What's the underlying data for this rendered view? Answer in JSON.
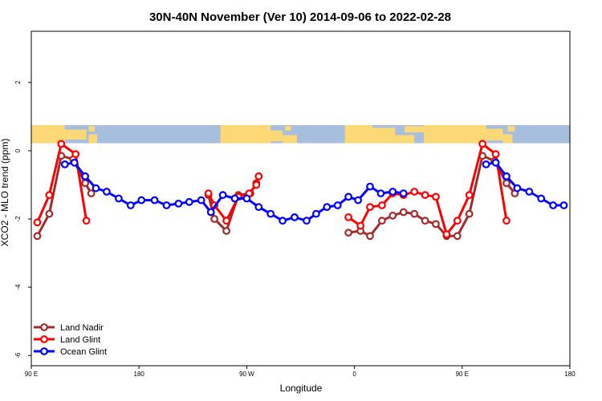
{
  "chart_data": {
    "type": "line",
    "title": "30N-40N November (Ver 10)   2014-09-06 to 2022-02-28",
    "xlabel": "Longitude",
    "ylabel": "XCO2 - MLO trend (ppm)",
    "xlim": [
      90,
      540
    ],
    "ylim": [
      -6.3,
      3.5
    ],
    "x_ticks": [
      {
        "value": 90,
        "label": "90 E"
      },
      {
        "value": 180,
        "label": "180"
      },
      {
        "value": 270,
        "label": "90 W"
      },
      {
        "value": 360,
        "label": "0"
      },
      {
        "value": 450,
        "label": "90 E"
      },
      {
        "value": 540,
        "label": "180"
      }
    ],
    "y_ticks": [
      {
        "value": 2,
        "label": "2"
      },
      {
        "value": 0,
        "label": "0"
      },
      {
        "value": -2,
        "label": "-2"
      },
      {
        "value": -4,
        "label": "-4"
      },
      {
        "value": -6,
        "label": "-6"
      }
    ],
    "map_strip": {
      "y_top": 0.75,
      "y_bottom": 0.22,
      "ocean_color": "#a8bede",
      "land_color": "#fdd876"
    },
    "legend_position": "bottom-left",
    "series": [
      {
        "name": "Land Nadir",
        "color": "#a52a2a",
        "segments": [
          [
            [
              95,
              -2.5
            ],
            [
              105,
              -1.85
            ],
            [
              115,
              -0.15
            ],
            [
              125,
              -0.25
            ],
            [
              135,
              -0.95
            ],
            [
              140,
              -1.25
            ]
          ],
          [
            [
              238,
              -1.3
            ],
            [
              243,
              -2.0
            ],
            [
              253,
              -2.35
            ],
            [
              263,
              -1.3
            ],
            [
              273,
              -1.25
            ],
            [
              278,
              -0.95
            ],
            [
              280,
              -0.75
            ]
          ],
          [
            [
              355,
              -2.4
            ],
            [
              365,
              -2.35
            ],
            [
              373,
              -2.5
            ],
            [
              383,
              -2.05
            ],
            [
              392,
              -1.9
            ],
            [
              401,
              -1.8
            ],
            [
              410,
              -1.85
            ],
            [
              419,
              -2.05
            ],
            [
              428,
              -2.15
            ],
            [
              437,
              -2.5
            ],
            [
              446,
              -2.5
            ],
            [
              456,
              -1.85
            ],
            [
              467,
              -0.15
            ],
            [
              477,
              -0.3
            ],
            [
              487,
              -0.95
            ],
            [
              494,
              -1.25
            ]
          ]
        ]
      },
      {
        "name": "Land Glint",
        "color": "#ff0000",
        "segments": [
          [
            [
              95,
              -2.1
            ],
            [
              105,
              -1.3
            ],
            [
              115,
              0.2
            ],
            [
              127,
              -0.1
            ],
            [
              136,
              -2.05
            ]
          ],
          [
            [
              238,
              -1.25
            ],
            [
              243,
              -1.6
            ],
            [
              253,
              -2.05
            ],
            [
              263,
              -1.35
            ],
            [
              272,
              -1.25
            ],
            [
              278,
              -1.0
            ],
            [
              280,
              -0.75
            ]
          ],
          [
            [
              355,
              -1.95
            ],
            [
              365,
              -2.2
            ],
            [
              373,
              -1.65
            ],
            [
              383,
              -1.6
            ],
            [
              392,
              -1.25
            ],
            [
              401,
              -1.3
            ],
            [
              410,
              -1.2
            ],
            [
              419,
              -1.3
            ],
            [
              428,
              -1.35
            ],
            [
              437,
              -2.45
            ],
            [
              446,
              -2.05
            ],
            [
              456,
              -1.3
            ],
            [
              467,
              0.2
            ],
            [
              478,
              -0.1
            ],
            [
              487,
              -2.05
            ]
          ]
        ]
      },
      {
        "name": "Ocean Glint",
        "color": "#0000ff",
        "segments": [
          [
            [
              118,
              -0.4
            ],
            [
              126,
              -0.35
            ],
            [
              135,
              -0.75
            ],
            [
              144,
              -1.1
            ],
            [
              153,
              -1.2
            ],
            [
              163,
              -1.4
            ],
            [
              173,
              -1.6
            ],
            [
              182,
              -1.45
            ],
            [
              193,
              -1.45
            ],
            [
              203,
              -1.6
            ],
            [
              213,
              -1.55
            ],
            [
              222,
              -1.5
            ],
            [
              232,
              -1.45
            ],
            [
              240,
              -1.8
            ],
            [
              250,
              -1.3
            ],
            [
              260,
              -1.4
            ],
            [
              270,
              -1.4
            ],
            [
              280,
              -1.65
            ],
            [
              290,
              -1.85
            ],
            [
              300,
              -2.05
            ],
            [
              310,
              -1.95
            ],
            [
              320,
              -2.05
            ],
            [
              328,
              -1.85
            ],
            [
              337,
              -1.65
            ],
            [
              346,
              -1.6
            ],
            [
              355,
              -1.35
            ],
            [
              363,
              -1.45
            ],
            [
              373,
              -1.05
            ],
            [
              382,
              -1.25
            ],
            [
              392,
              -1.2
            ],
            [
              401,
              -1.25
            ]
          ],
          [
            [
              470,
              -0.4
            ],
            [
              478,
              -0.35
            ],
            [
              487,
              -0.75
            ],
            [
              496,
              -1.1
            ],
            [
              506,
              -1.2
            ],
            [
              516,
              -1.4
            ],
            [
              526,
              -1.6
            ],
            [
              535,
              -1.6
            ]
          ]
        ]
      }
    ]
  }
}
